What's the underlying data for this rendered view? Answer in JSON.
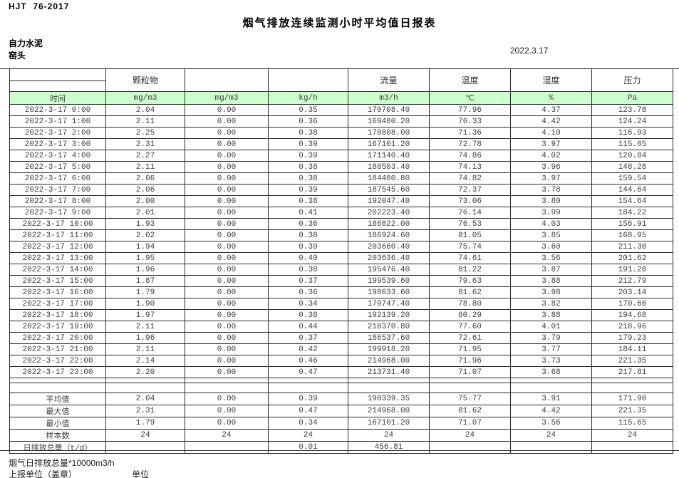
{
  "page": {
    "doc_code": "HJT  76-2017",
    "title": "烟气排放连续监测小时平均值日报表",
    "company": "自力水泥",
    "station": "窑头",
    "date": "2022.3.17"
  },
  "colors": {
    "units_row_green": "#ccffcc",
    "border": "#2b2b2b"
  },
  "table": {
    "header": {
      "time_label": "时间",
      "groups": [
        "颗粒物",
        "",
        "",
        "流量",
        "温度",
        "湿度",
        "压力"
      ],
      "units": [
        "mg/m3",
        "mg/m3",
        "kg/h",
        "m3/h",
        "℃",
        "%",
        "Pa"
      ]
    },
    "rows": [
      {
        "label": "2022-3-17 0:00",
        "values": [
          "2.04",
          "0.00",
          "0.35",
          "170708.40",
          "77.96",
          "4.37",
          "123.78"
        ]
      },
      {
        "label": "2022-3-17 1:00",
        "values": [
          "2.11",
          "0.00",
          "0.36",
          "169480.20",
          "76.33",
          "4.42",
          "124.24"
        ]
      },
      {
        "label": "2022-3-17 2:00",
        "values": [
          "2.25",
          "0.00",
          "0.38",
          "170808.00",
          "71.36",
          "4.10",
          "116.93"
        ]
      },
      {
        "label": "2022-3-17 3:00",
        "values": [
          "2.31",
          "0.00",
          "0.39",
          "167101.20",
          "72.78",
          "3.97",
          "115.65"
        ]
      },
      {
        "label": "2022-3-17 4:00",
        "values": [
          "2.27",
          "0.00",
          "0.39",
          "171140.40",
          "74.86",
          "4.02",
          "120.84"
        ]
      },
      {
        "label": "2022-3-17 5:00",
        "values": [
          "2.11",
          "0.00",
          "0.38",
          "180503.40",
          "74.13",
          "3.96",
          "148.28"
        ]
      },
      {
        "label": "2022-3-17 6:00",
        "values": [
          "2.06",
          "0.00",
          "0.38",
          "184480.80",
          "74.82",
          "3.97",
          "159.54"
        ]
      },
      {
        "label": "2022-3-17 7:00",
        "values": [
          "2.06",
          "0.00",
          "0.39",
          "187545.60",
          "72.37",
          "3.78",
          "144.64"
        ]
      },
      {
        "label": "2022-3-17 8:00",
        "values": [
          "2.00",
          "0.00",
          "0.38",
          "192047.40",
          "73.06",
          "3.80",
          "154.64"
        ]
      },
      {
        "label": "2022-3-17 9:00",
        "values": [
          "2.01",
          "0.00",
          "0.41",
          "202223.40",
          "76.14",
          "3.99",
          "184.22"
        ]
      },
      {
        "label": "2022-3-17 10:00",
        "values": [
          "1.93",
          "0.00",
          "0.36",
          "186822.00",
          "76.53",
          "4.03",
          "156.91"
        ]
      },
      {
        "label": "2022-3-17 11:00",
        "values": [
          "2.02",
          "0.00",
          "0.38",
          "186924.60",
          "81.05",
          "3.85",
          "168.95"
        ]
      },
      {
        "label": "2022-3-17 12:00",
        "values": [
          "1.94",
          "0.00",
          "0.39",
          "203660.40",
          "75.74",
          "3.60",
          "211.30"
        ]
      },
      {
        "label": "2022-3-17 13:00",
        "values": [
          "1.95",
          "0.00",
          "0.40",
          "203636.40",
          "74.61",
          "3.56",
          "201.62"
        ]
      },
      {
        "label": "2022-3-17 14:00",
        "values": [
          "1.96",
          "0.00",
          "0.38",
          "195476.40",
          "81.22",
          "3.87",
          "191.28"
        ]
      },
      {
        "label": "2022-3-17 15:00",
        "values": [
          "1.87",
          "0.00",
          "0.37",
          "199539.60",
          "79.63",
          "3.88",
          "212.79"
        ]
      },
      {
        "label": "2022-3-17 16:00",
        "values": [
          "1.79",
          "0.00",
          "0.36",
          "198633.60",
          "81.62",
          "3.98",
          "203.14"
        ]
      },
      {
        "label": "2022-3-17 17:00",
        "values": [
          "1.90",
          "0.00",
          "0.34",
          "179747.40",
          "78.80",
          "3.82",
          "170.66"
        ]
      },
      {
        "label": "2022-3-17 18:00",
        "values": [
          "1.97",
          "0.00",
          "0.38",
          "192139.20",
          "80.29",
          "3.88",
          "194.68"
        ]
      },
      {
        "label": "2022-3-17 19:00",
        "values": [
          "2.11",
          "0.00",
          "0.44",
          "210370.80",
          "77.60",
          "4.01",
          "218.96"
        ]
      },
      {
        "label": "2022-3-17 20:00",
        "values": [
          "1.96",
          "0.00",
          "0.37",
          "186537.60",
          "72.61",
          "3.79",
          "179.23"
        ]
      },
      {
        "label": "2022-3-17 21:00",
        "values": [
          "2.11",
          "0.00",
          "0.42",
          "199918.20",
          "71.95",
          "3.77",
          "184.11"
        ]
      },
      {
        "label": "2022-3-17 22:00",
        "values": [
          "2.14",
          "0.00",
          "0.46",
          "214968.00",
          "71.96",
          "3.73",
          "221.35"
        ]
      },
      {
        "label": "2022-3-17 23:00",
        "values": [
          "2.20",
          "0.00",
          "0.47",
          "213731.40",
          "71.07",
          "3.68",
          "217.81"
        ]
      }
    ],
    "summary": [
      {
        "label": "平均值",
        "values": [
          "2.04",
          "0.00",
          "0.39",
          "190339.35",
          "75.77",
          "3.91",
          "171.90"
        ]
      },
      {
        "label": "最大值",
        "values": [
          "2.31",
          "0.00",
          "0.47",
          "214968.00",
          "81.62",
          "4.42",
          "221.35"
        ]
      },
      {
        "label": "最小值",
        "values": [
          "1.79",
          "0.00",
          "0.34",
          "167101.20",
          "71.07",
          "3.56",
          "115.65"
        ]
      },
      {
        "label": "样本数",
        "values": [
          "24",
          "24",
          "24",
          "24",
          "24",
          "24",
          "24"
        ]
      },
      {
        "label": "日排放总量（t/d）",
        "values": [
          "",
          "",
          "0.01",
          "456.81",
          "",
          "",
          ""
        ]
      }
    ]
  },
  "footer": {
    "note": "烟气日排放总量*10000m3/h",
    "report_unit_label": "上报单位（盖章）",
    "unit_label": "单位"
  }
}
